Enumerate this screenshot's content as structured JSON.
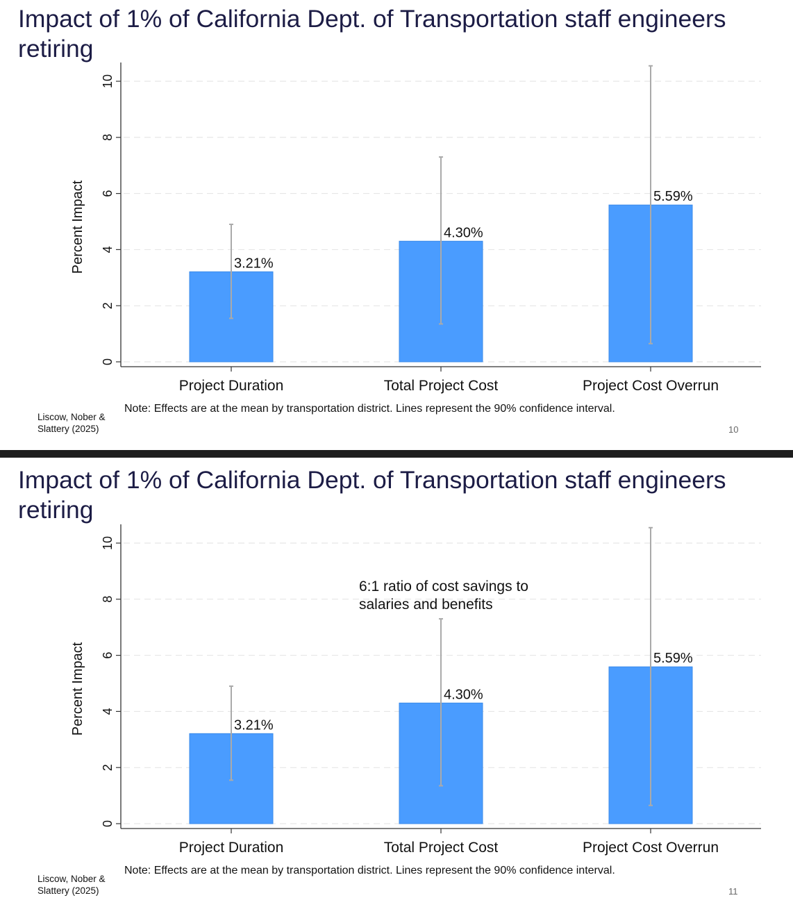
{
  "slides": [
    {
      "title": "Impact of 1% of California Dept. of Transportation staff engineers retiring",
      "note": "Note: Effects are at the mean by transportation district. Lines represent the 90% confidence interval.",
      "credit": "Liscow, Nober & Slattery (2025)",
      "page_number": "10"
    },
    {
      "title": "Impact of 1% of California Dept. of Transportation staff engineers retiring",
      "note": "Note: Effects are at the mean by transportation district. Lines represent the 90% confidence interval.",
      "credit": "Liscow, Nober & Slattery (2025)",
      "page_number": "11",
      "annotation": "6:1 ratio of cost savings to salaries and benefits"
    }
  ],
  "chart_data": [
    {
      "type": "bar",
      "title": "Impact of 1% of California Dept. of Transportation staff engineers retiring",
      "categories": [
        "Project Duration",
        "Total Project Cost",
        "Project Cost Overrun"
      ],
      "values": [
        3.21,
        4.3,
        5.59
      ],
      "value_labels": [
        "3.21%",
        "4.30%",
        "5.59%"
      ],
      "ci_low": [
        1.55,
        1.35,
        0.65
      ],
      "ci_high": [
        4.9,
        7.3,
        10.55
      ],
      "ylabel": "Percent Impact",
      "xlabel": "",
      "ylim": [
        0,
        10.7
      ],
      "yticks": [
        0,
        2,
        4,
        6,
        8,
        10
      ],
      "grid": true,
      "bar_color": "#4a9cff",
      "ci_color": "#aaaaaa"
    },
    {
      "type": "bar",
      "title": "Impact of 1% of California Dept. of Transportation staff engineers retiring",
      "categories": [
        "Project Duration",
        "Total Project Cost",
        "Project Cost Overrun"
      ],
      "values": [
        3.21,
        4.3,
        5.59
      ],
      "value_labels": [
        "3.21%",
        "4.30%",
        "5.59%"
      ],
      "ci_low": [
        1.55,
        1.35,
        0.65
      ],
      "ci_high": [
        4.9,
        7.3,
        10.55
      ],
      "ylabel": "Percent Impact",
      "xlabel": "",
      "ylim": [
        0,
        10.7
      ],
      "yticks": [
        0,
        2,
        4,
        6,
        8,
        10
      ],
      "grid": true,
      "bar_color": "#4a9cff",
      "ci_color": "#aaaaaa",
      "annotation": "6:1 ratio of cost savings to salaries and benefits"
    }
  ]
}
